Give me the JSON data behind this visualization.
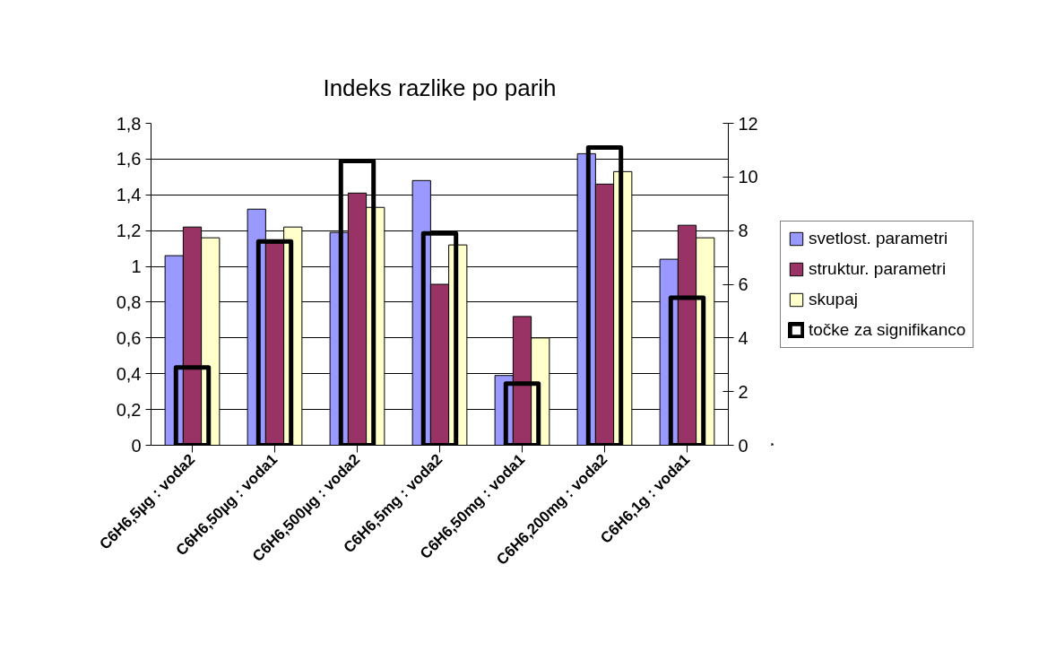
{
  "chart_data": {
    "type": "bar",
    "title": "Indeks razlike po parih",
    "categories": [
      "C6H6,5µg : voda2",
      "C6H6,50µg : voda1",
      "C6H6,500µg : voda2",
      "C6H6,5mg : voda2",
      "C6H6,50mg : voda1",
      "C6H6,200mg : voda2",
      "C6H6,1g : voda1"
    ],
    "series": [
      {
        "name": "svetlost. parametri",
        "color": "#9999ff",
        "values": [
          1.06,
          1.32,
          1.19,
          1.48,
          0.39,
          1.63,
          1.04
        ]
      },
      {
        "name": "struktur. parametri",
        "color": "#993366",
        "values": [
          1.22,
          1.13,
          1.41,
          0.9,
          0.72,
          1.46,
          1.23
        ]
      },
      {
        "name": "skupaj",
        "color": "#ffffcc",
        "values": [
          1.16,
          1.22,
          1.33,
          1.12,
          0.6,
          1.53,
          1.16
        ]
      },
      {
        "name": "točke za signifikanco",
        "color": "#000000",
        "axis": "y2",
        "values": [
          2.9,
          7.6,
          10.6,
          7.9,
          2.3,
          11.1,
          5.5
        ]
      }
    ],
    "ylim": [
      0,
      1.8
    ],
    "yticks": [
      0,
      {
        "value": 0.2,
        "label": "0,2"
      },
      {
        "value": 0.4,
        "label": "0,4"
      },
      {
        "value": 0.6,
        "label": "0,6"
      },
      {
        "value": 0.8,
        "label": "0,8"
      },
      1,
      {
        "value": 1.2,
        "label": "1,2"
      },
      {
        "value": 1.4,
        "label": "1,4"
      },
      {
        "value": 1.6,
        "label": "1,6"
      },
      {
        "value": 1.8,
        "label": "1,8"
      }
    ],
    "y2lim": [
      0,
      12
    ],
    "y2ticks": [
      0,
      2,
      4,
      6,
      8,
      10,
      12
    ],
    "grid": "y",
    "legend": "right"
  }
}
